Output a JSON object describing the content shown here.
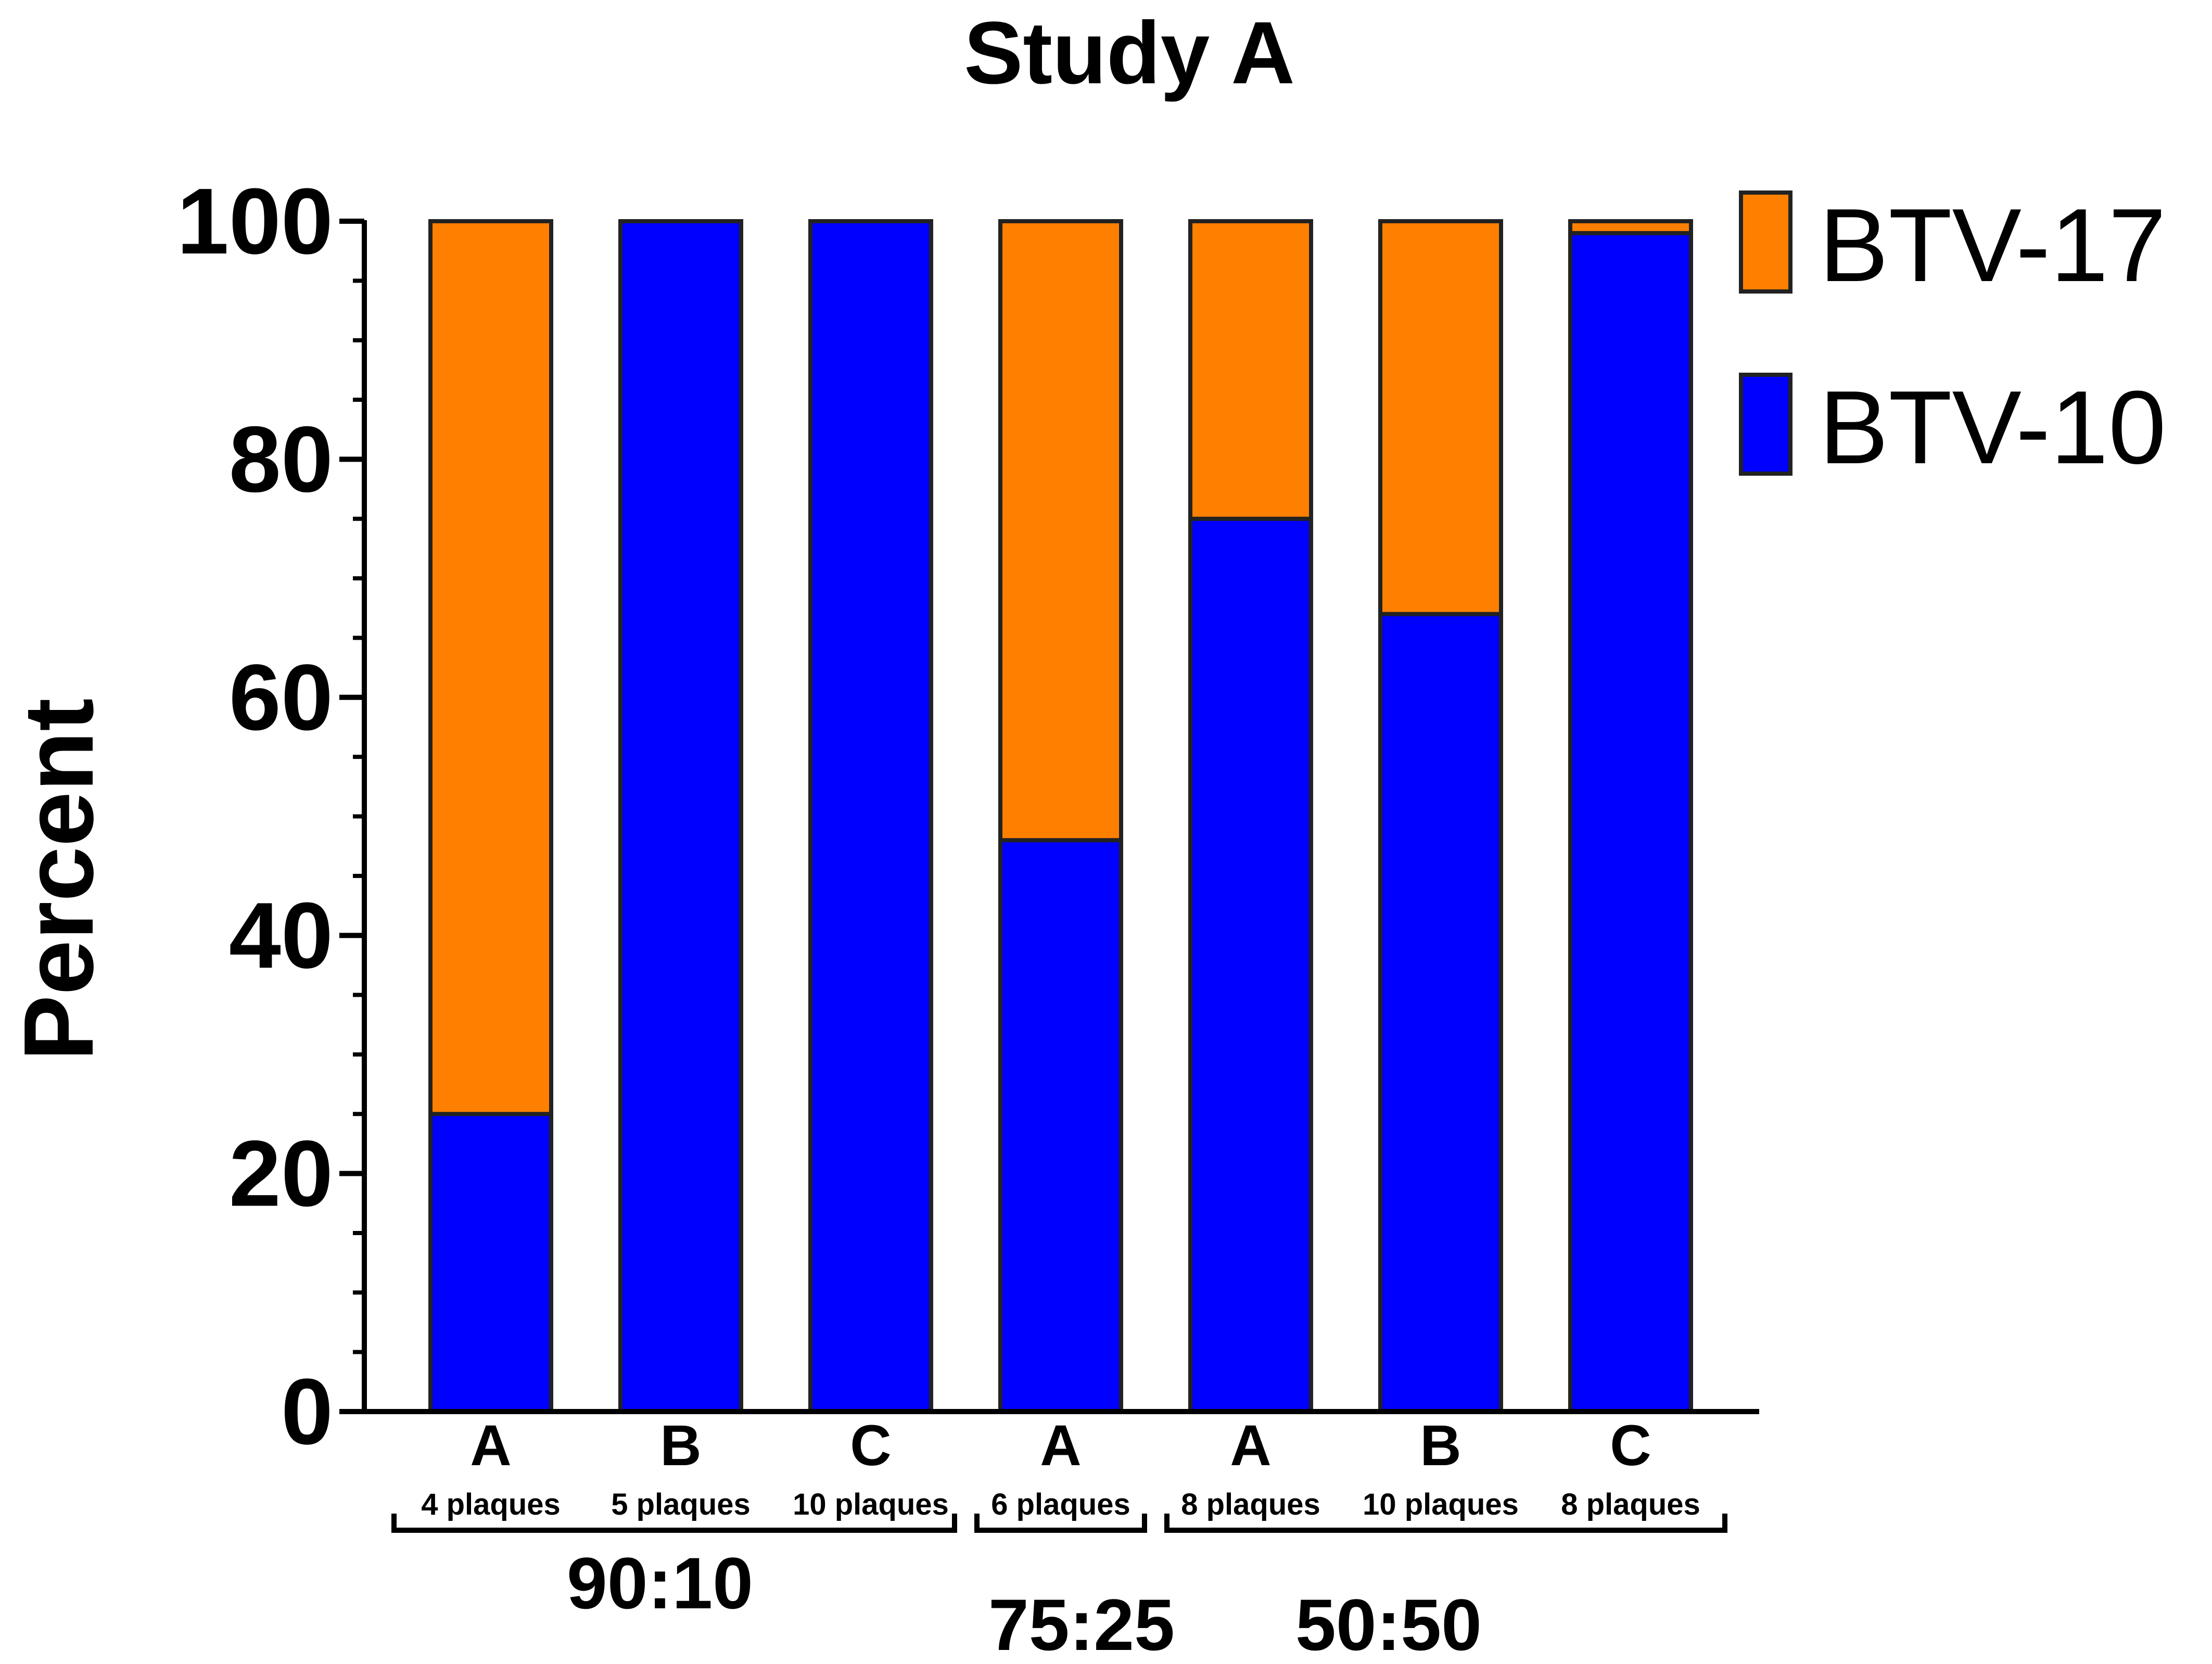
{
  "chart_data": {
    "type": "bar",
    "stacked": true,
    "title": "Study A",
    "ylabel": "Percent",
    "xlabel": "",
    "ylim": [
      0,
      100
    ],
    "y_ticks": [
      0,
      20,
      40,
      60,
      80,
      100
    ],
    "y_tick_labels": [
      "0",
      "20",
      "40",
      "60",
      "80",
      "100"
    ],
    "y_minor_step": 5,
    "categories": [
      "A",
      "B",
      "C",
      "A",
      "A",
      "B",
      "C"
    ],
    "sublabels": [
      "4 plaques",
      "5 plaques",
      "10 plaques",
      "6 plaques",
      "8 plaques",
      "10 plaques",
      "8 plaques"
    ],
    "groups": [
      {
        "label": "90:10",
        "members": [
          0,
          1,
          2
        ]
      },
      {
        "label": "75:25",
        "members": [
          3
        ]
      },
      {
        "label": "50:50",
        "members": [
          4,
          5,
          6
        ]
      }
    ],
    "series": [
      {
        "name": "BTV-10",
        "color": "#0000ff",
        "values": [
          25,
          100,
          100,
          48,
          75,
          67,
          99
        ]
      },
      {
        "name": "BTV-17",
        "color": "#ff8000",
        "values": [
          75,
          0,
          0,
          52,
          25,
          33,
          1
        ]
      }
    ],
    "legend": {
      "position": "top-right",
      "entries": [
        {
          "name": "BTV-17",
          "color": "#ff8000"
        },
        {
          "name": "BTV-10",
          "color": "#0000ff"
        }
      ]
    },
    "grid": false
  }
}
